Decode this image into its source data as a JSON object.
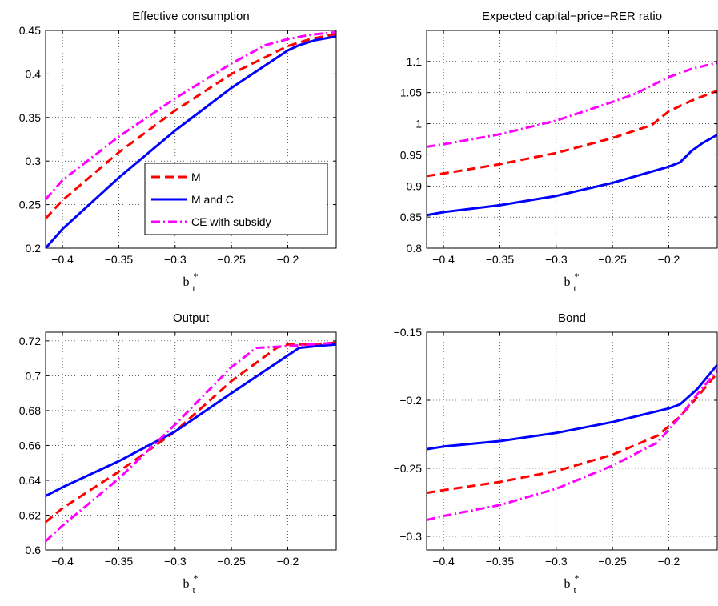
{
  "figure": {
    "legend": {
      "panel": 0,
      "entries": [
        "M",
        "M and C",
        "CE with subsidy"
      ]
    }
  },
  "series_style": [
    {
      "key": "M",
      "color": "#ff0000",
      "dash": "dashed"
    },
    {
      "key": "M and C",
      "color": "#0000ff",
      "dash": "solid"
    },
    {
      "key": "CE with subsidy",
      "color": "#ff00ff",
      "dash": "dashdot"
    }
  ],
  "chart_data": [
    {
      "type": "line",
      "title": "Effective consumption",
      "xlabel": "b",
      "xlabel_sub": "t",
      "xlabel_sup": "*",
      "xlim": [
        -0.415,
        -0.157
      ],
      "ylim": [
        0.2,
        0.45
      ],
      "xticks": [
        -0.4,
        -0.35,
        -0.3,
        -0.25,
        -0.2
      ],
      "xtick_labels": [
        "−0.4",
        "−0.35",
        "−0.3",
        "−0.25",
        "−0.2"
      ],
      "yticks": [
        0.2,
        0.25,
        0.3,
        0.35,
        0.4,
        0.45
      ],
      "ytick_labels": [
        "0.2",
        "0.25",
        "0.3",
        "0.35",
        "0.4",
        "0.45"
      ],
      "grid": true,
      "legend_position": "lower-right",
      "series": [
        {
          "name": "M",
          "x": [
            -0.415,
            -0.4,
            -0.35,
            -0.3,
            -0.25,
            -0.2,
            -0.18,
            -0.157
          ],
          "y": [
            0.234,
            0.255,
            0.31,
            0.358,
            0.4,
            0.432,
            0.44,
            0.446
          ]
        },
        {
          "name": "M and C",
          "x": [
            -0.415,
            -0.4,
            -0.35,
            -0.3,
            -0.25,
            -0.2,
            -0.19,
            -0.175,
            -0.157
          ],
          "y": [
            0.2,
            0.222,
            0.281,
            0.335,
            0.384,
            0.427,
            0.433,
            0.439,
            0.443
          ]
        },
        {
          "name": "CE with subsidy",
          "x": [
            -0.415,
            -0.4,
            -0.35,
            -0.3,
            -0.25,
            -0.22,
            -0.2,
            -0.18,
            -0.157
          ],
          "y": [
            0.256,
            0.278,
            0.328,
            0.372,
            0.412,
            0.433,
            0.44,
            0.445,
            0.448
          ]
        }
      ]
    },
    {
      "type": "line",
      "title": "Expected capital−price−RER ratio",
      "xlabel": "b",
      "xlabel_sub": "t",
      "xlabel_sup": "*",
      "xlim": [
        -0.415,
        -0.157
      ],
      "ylim": [
        0.8,
        1.15
      ],
      "xticks": [
        -0.4,
        -0.35,
        -0.3,
        -0.25,
        -0.2
      ],
      "xtick_labels": [
        "−0.4",
        "−0.35",
        "−0.3",
        "−0.25",
        "−0.2"
      ],
      "yticks": [
        0.8,
        0.85,
        0.9,
        0.95,
        1.0,
        1.05,
        1.1
      ],
      "ytick_labels": [
        "0.8",
        "0.85",
        "0.9",
        "0.95",
        "1",
        "1.05",
        "1.1"
      ],
      "grid": true,
      "series": [
        {
          "name": "M",
          "x": [
            -0.415,
            -0.4,
            -0.35,
            -0.3,
            -0.25,
            -0.215,
            -0.2,
            -0.18,
            -0.157
          ],
          "y": [
            0.916,
            0.92,
            0.935,
            0.953,
            0.977,
            0.998,
            1.02,
            1.037,
            1.053
          ]
        },
        {
          "name": "M and C",
          "x": [
            -0.415,
            -0.4,
            -0.35,
            -0.3,
            -0.25,
            -0.2,
            -0.19,
            -0.18,
            -0.17,
            -0.157
          ],
          "y": [
            0.853,
            0.858,
            0.869,
            0.884,
            0.905,
            0.931,
            0.938,
            0.956,
            0.969,
            0.982
          ]
        },
        {
          "name": "CE with subsidy",
          "x": [
            -0.415,
            -0.4,
            -0.35,
            -0.3,
            -0.25,
            -0.23,
            -0.2,
            -0.18,
            -0.157
          ],
          "y": [
            0.963,
            0.967,
            0.983,
            1.005,
            1.035,
            1.048,
            1.075,
            1.088,
            1.098
          ]
        }
      ]
    },
    {
      "type": "line",
      "title": "Output",
      "xlabel": "b",
      "xlabel_sub": "t",
      "xlabel_sup": "*",
      "xlim": [
        -0.415,
        -0.157
      ],
      "ylim": [
        0.6,
        0.725
      ],
      "xticks": [
        -0.4,
        -0.35,
        -0.3,
        -0.25,
        -0.2
      ],
      "xtick_labels": [
        "−0.4",
        "−0.35",
        "−0.3",
        "−0.25",
        "−0.2"
      ],
      "yticks": [
        0.6,
        0.62,
        0.64,
        0.66,
        0.68,
        0.7,
        0.72
      ],
      "ytick_labels": [
        "0.6",
        "0.62",
        "0.64",
        "0.66",
        "0.68",
        "0.7",
        "0.72"
      ],
      "grid": true,
      "series": [
        {
          "name": "M",
          "x": [
            -0.415,
            -0.4,
            -0.35,
            -0.3,
            -0.25,
            -0.21,
            -0.2,
            -0.18,
            -0.157
          ],
          "y": [
            0.616,
            0.624,
            0.645,
            0.668,
            0.697,
            0.716,
            0.718,
            0.718,
            0.719
          ]
        },
        {
          "name": "M and C",
          "x": [
            -0.415,
            -0.4,
            -0.35,
            -0.3,
            -0.25,
            -0.19,
            -0.175,
            -0.157
          ],
          "y": [
            0.631,
            0.636,
            0.651,
            0.668,
            0.69,
            0.716,
            0.717,
            0.718
          ]
        },
        {
          "name": "CE with subsidy",
          "x": [
            -0.415,
            -0.4,
            -0.35,
            -0.3,
            -0.25,
            -0.228,
            -0.2,
            -0.157
          ],
          "y": [
            0.605,
            0.614,
            0.641,
            0.672,
            0.705,
            0.716,
            0.717,
            0.719
          ]
        }
      ]
    },
    {
      "type": "line",
      "title": "Bond",
      "xlabel": "b",
      "xlabel_sub": "t",
      "xlabel_sup": "*",
      "xlim": [
        -0.415,
        -0.157
      ],
      "ylim": [
        -0.31,
        -0.15
      ],
      "xticks": [
        -0.4,
        -0.35,
        -0.3,
        -0.25,
        -0.2
      ],
      "xtick_labels": [
        "−0.4",
        "−0.35",
        "−0.3",
        "−0.25",
        "−0.2"
      ],
      "yticks": [
        -0.3,
        -0.25,
        -0.2,
        -0.15
      ],
      "ytick_labels": [
        "−0.3",
        "−0.25",
        "−0.2",
        "−0.15"
      ],
      "grid": true,
      "series": [
        {
          "name": "M",
          "x": [
            -0.415,
            -0.4,
            -0.35,
            -0.3,
            -0.25,
            -0.21,
            -0.19,
            -0.175,
            -0.157
          ],
          "y": [
            -0.268,
            -0.266,
            -0.26,
            -0.252,
            -0.24,
            -0.226,
            -0.212,
            -0.198,
            -0.18
          ]
        },
        {
          "name": "M and C",
          "x": [
            -0.415,
            -0.4,
            -0.35,
            -0.3,
            -0.25,
            -0.2,
            -0.19,
            -0.175,
            -0.157
          ],
          "y": [
            -0.236,
            -0.234,
            -0.23,
            -0.224,
            -0.216,
            -0.206,
            -0.203,
            -0.192,
            -0.174
          ]
        },
        {
          "name": "CE with subsidy",
          "x": [
            -0.415,
            -0.4,
            -0.35,
            -0.3,
            -0.25,
            -0.21,
            -0.19,
            -0.175,
            -0.157
          ],
          "y": [
            -0.288,
            -0.285,
            -0.277,
            -0.265,
            -0.248,
            -0.231,
            -0.212,
            -0.196,
            -0.178
          ]
        }
      ]
    }
  ]
}
